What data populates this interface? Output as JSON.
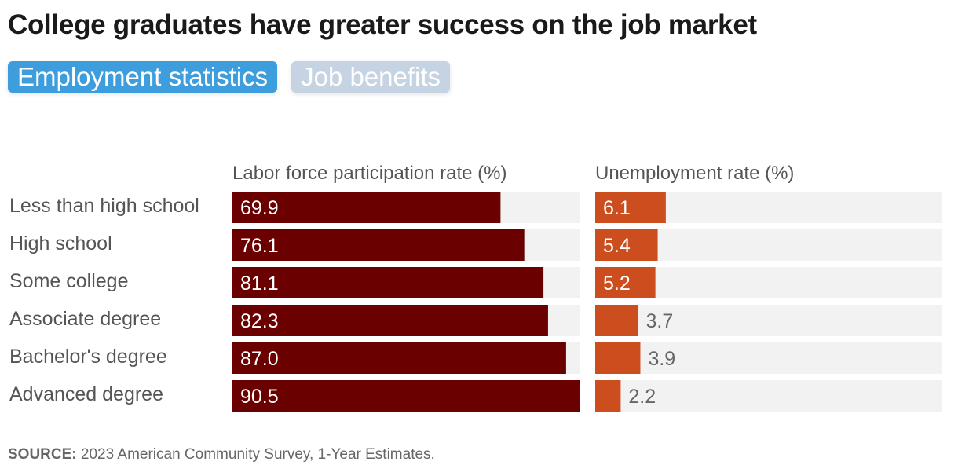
{
  "title": "College graduates have greater success on the job market",
  "tabs": [
    {
      "label": "Employment statistics",
      "active": true
    },
    {
      "label": "Job benefits",
      "active": false
    }
  ],
  "colors": {
    "participation_bar": "#6b0000",
    "unemployment_bar": "#cc4d1d",
    "track": "#f2f2f2",
    "tab_active": "#3e9ddc",
    "tab_inactive": "#c5d3e3"
  },
  "chart_data": {
    "type": "bar",
    "orientation": "horizontal",
    "categories": [
      "Less than high school",
      "High school",
      "Some college",
      "Associate degree",
      "Bachelor's degree",
      "Advanced degree"
    ],
    "series": [
      {
        "name": "Labor force participation rate (%)",
        "values": [
          69.9,
          76.1,
          81.1,
          82.3,
          87.0,
          90.5
        ],
        "labels": [
          "69.9",
          "76.1",
          "81.1",
          "82.3",
          "87.0",
          "90.5"
        ],
        "xlim": [
          0,
          90.5
        ]
      },
      {
        "name": "Unemployment rate (%)",
        "values": [
          6.1,
          5.4,
          5.2,
          3.7,
          3.9,
          2.2
        ],
        "labels": [
          "6.1",
          "5.4",
          "5.2",
          "3.7",
          "3.9",
          "2.2"
        ],
        "xlim": [
          0,
          30
        ]
      }
    ]
  },
  "source": {
    "label": "SOURCE:",
    "text": "2023 American Community Survey, 1-Year Estimates."
  }
}
